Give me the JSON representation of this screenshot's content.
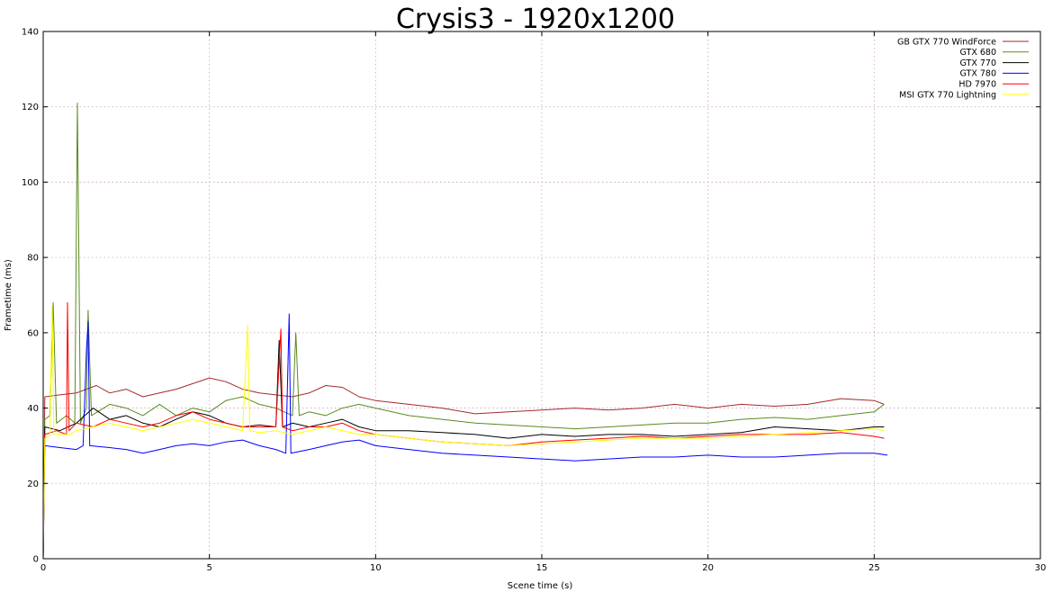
{
  "chart_data": {
    "type": "line",
    "title": "Crysis3 - 1920x1200",
    "xlabel": "Scene time (s)",
    "ylabel": "Frametime (ms)",
    "xlim": [
      0,
      30
    ],
    "ylim": [
      0,
      140
    ],
    "x_ticks": [
      "0",
      "5",
      "10",
      "15",
      "20",
      "25",
      "30"
    ],
    "y_ticks": [
      "0",
      "20",
      "40",
      "60",
      "80",
      "100",
      "120",
      "140"
    ],
    "grid": true,
    "legend_position": "top-right",
    "series": [
      {
        "name": "GB GTX 770 WindForce",
        "color": "#a52a2a",
        "points": [
          [
            0,
            0
          ],
          [
            0.05,
            43
          ],
          [
            0.5,
            43.5
          ],
          [
            1,
            44
          ],
          [
            1.3,
            45
          ],
          [
            1.6,
            46
          ],
          [
            2,
            44
          ],
          [
            2.5,
            45
          ],
          [
            3,
            43
          ],
          [
            3.5,
            44
          ],
          [
            4,
            45
          ],
          [
            4.5,
            46.5
          ],
          [
            5,
            48
          ],
          [
            5.5,
            47
          ],
          [
            6,
            45
          ],
          [
            6.5,
            44
          ],
          [
            7,
            43.5
          ],
          [
            7.5,
            43
          ],
          [
            8,
            44
          ],
          [
            8.5,
            46
          ],
          [
            9,
            45.5
          ],
          [
            9.5,
            43
          ],
          [
            10,
            42
          ],
          [
            11,
            41
          ],
          [
            12,
            40
          ],
          [
            13,
            38.5
          ],
          [
            14,
            39
          ],
          [
            15,
            39.5
          ],
          [
            16,
            40
          ],
          [
            17,
            39.5
          ],
          [
            18,
            40
          ],
          [
            19,
            41
          ],
          [
            20,
            40
          ],
          [
            21,
            41
          ],
          [
            22,
            40.5
          ],
          [
            23,
            41
          ],
          [
            24,
            42.5
          ],
          [
            25,
            42
          ],
          [
            25.3,
            41
          ]
        ]
      },
      {
        "name": "GTX 680",
        "color": "#5a8a1e",
        "points": [
          [
            0,
            0
          ],
          [
            0.05,
            37
          ],
          [
            0.2,
            38
          ],
          [
            0.3,
            68
          ],
          [
            0.4,
            36
          ],
          [
            0.7,
            38
          ],
          [
            0.95,
            36
          ],
          [
            1.03,
            121
          ],
          [
            1.12,
            36
          ],
          [
            1.3,
            40
          ],
          [
            1.35,
            66
          ],
          [
            1.45,
            38
          ],
          [
            2,
            41
          ],
          [
            2.5,
            40
          ],
          [
            3,
            38
          ],
          [
            3.5,
            41
          ],
          [
            4,
            38
          ],
          [
            4.5,
            40
          ],
          [
            5,
            39
          ],
          [
            5.5,
            42
          ],
          [
            6,
            43
          ],
          [
            6.5,
            41
          ],
          [
            7,
            40
          ],
          [
            7.5,
            38
          ],
          [
            7.6,
            60
          ],
          [
            7.7,
            38
          ],
          [
            8,
            39
          ],
          [
            8.5,
            38
          ],
          [
            9,
            40
          ],
          [
            9.5,
            41
          ],
          [
            10,
            40
          ],
          [
            11,
            38
          ],
          [
            12,
            37
          ],
          [
            13,
            36
          ],
          [
            14,
            35.5
          ],
          [
            15,
            35
          ],
          [
            16,
            34.5
          ],
          [
            17,
            35
          ],
          [
            18,
            35.5
          ],
          [
            19,
            36
          ],
          [
            20,
            36
          ],
          [
            21,
            37
          ],
          [
            22,
            37.5
          ],
          [
            23,
            37
          ],
          [
            24,
            38
          ],
          [
            25,
            39
          ],
          [
            25.3,
            41
          ]
        ]
      },
      {
        "name": "GTX 770",
        "color": "#000000",
        "points": [
          [
            0,
            0
          ],
          [
            0.05,
            35
          ],
          [
            0.5,
            34
          ],
          [
            1,
            36
          ],
          [
            1.5,
            40
          ],
          [
            2,
            37
          ],
          [
            2.5,
            38
          ],
          [
            3,
            36
          ],
          [
            3.5,
            35
          ],
          [
            4,
            37
          ],
          [
            4.5,
            39
          ],
          [
            5,
            38
          ],
          [
            5.5,
            36
          ],
          [
            6,
            35
          ],
          [
            6.5,
            35.5
          ],
          [
            7,
            35
          ],
          [
            7.1,
            58
          ],
          [
            7.2,
            35
          ],
          [
            7.5,
            36
          ],
          [
            8,
            35
          ],
          [
            8.5,
            36
          ],
          [
            9,
            37
          ],
          [
            9.5,
            35
          ],
          [
            10,
            34
          ],
          [
            11,
            34
          ],
          [
            12,
            33.5
          ],
          [
            13,
            33
          ],
          [
            14,
            32
          ],
          [
            15,
            33
          ],
          [
            16,
            32.5
          ],
          [
            17,
            33
          ],
          [
            18,
            33
          ],
          [
            19,
            32.5
          ],
          [
            20,
            33
          ],
          [
            21,
            33.5
          ],
          [
            22,
            35
          ],
          [
            23,
            34.5
          ],
          [
            24,
            34
          ],
          [
            25,
            35
          ],
          [
            25.3,
            35
          ]
        ]
      },
      {
        "name": "GTX 780",
        "color": "#0000ff",
        "points": [
          [
            0,
            0
          ],
          [
            0.05,
            30
          ],
          [
            0.5,
            29.5
          ],
          [
            1,
            29
          ],
          [
            1.2,
            30
          ],
          [
            1.3,
            55
          ],
          [
            1.35,
            63
          ],
          [
            1.4,
            30
          ],
          [
            2,
            29.5
          ],
          [
            2.5,
            29
          ],
          [
            3,
            28
          ],
          [
            3.5,
            29
          ],
          [
            4,
            30
          ],
          [
            4.5,
            30.5
          ],
          [
            5,
            30
          ],
          [
            5.5,
            31
          ],
          [
            6,
            31.5
          ],
          [
            6.5,
            30
          ],
          [
            7,
            29
          ],
          [
            7.3,
            28
          ],
          [
            7.4,
            65
          ],
          [
            7.45,
            28
          ],
          [
            8,
            29
          ],
          [
            8.5,
            30
          ],
          [
            9,
            31
          ],
          [
            9.5,
            31.5
          ],
          [
            10,
            30
          ],
          [
            11,
            29
          ],
          [
            12,
            28
          ],
          [
            13,
            27.5
          ],
          [
            14,
            27
          ],
          [
            15,
            26.5
          ],
          [
            16,
            26
          ],
          [
            17,
            26.5
          ],
          [
            18,
            27
          ],
          [
            19,
            27
          ],
          [
            20,
            27.5
          ],
          [
            21,
            27
          ],
          [
            22,
            27
          ],
          [
            23,
            27.5
          ],
          [
            24,
            28
          ],
          [
            25,
            28
          ],
          [
            25.4,
            27.5
          ]
        ]
      },
      {
        "name": "HD 7970",
        "color": "#ff0000",
        "points": [
          [
            0,
            0
          ],
          [
            0.05,
            33
          ],
          [
            0.4,
            34
          ],
          [
            0.7,
            33
          ],
          [
            0.73,
            68
          ],
          [
            0.78,
            34
          ],
          [
            1,
            36
          ],
          [
            1.5,
            35
          ],
          [
            2,
            37
          ],
          [
            2.5,
            36
          ],
          [
            3,
            35
          ],
          [
            3.5,
            36
          ],
          [
            4,
            38
          ],
          [
            4.5,
            39
          ],
          [
            5,
            37
          ],
          [
            5.5,
            36
          ],
          [
            6,
            35
          ],
          [
            6.5,
            35
          ],
          [
            7,
            35
          ],
          [
            7.15,
            61
          ],
          [
            7.2,
            35
          ],
          [
            7.5,
            34
          ],
          [
            8,
            35
          ],
          [
            8.5,
            35
          ],
          [
            9,
            36
          ],
          [
            9.5,
            34
          ],
          [
            10,
            33
          ],
          [
            11,
            32
          ],
          [
            12,
            31
          ],
          [
            13,
            30.5
          ],
          [
            14,
            30
          ],
          [
            15,
            31
          ],
          [
            16,
            31.5
          ],
          [
            17,
            32
          ],
          [
            18,
            32.5
          ],
          [
            19,
            32
          ],
          [
            20,
            32.5
          ],
          [
            21,
            33
          ],
          [
            22,
            33
          ],
          [
            23,
            33
          ],
          [
            24,
            33.5
          ],
          [
            25,
            32.5
          ],
          [
            25.3,
            32
          ]
        ]
      },
      {
        "name": "MSI GTX 770 Lightning",
        "color": "#ffff00",
        "points": [
          [
            0,
            0
          ],
          [
            0.05,
            32
          ],
          [
            0.2,
            33
          ],
          [
            0.27,
            67
          ],
          [
            0.32,
            33
          ],
          [
            0.8,
            33
          ],
          [
            1,
            34
          ],
          [
            1.5,
            35
          ],
          [
            2,
            36
          ],
          [
            2.5,
            35
          ],
          [
            3,
            34
          ],
          [
            3.5,
            35
          ],
          [
            4,
            36
          ],
          [
            4.5,
            37
          ],
          [
            5,
            36
          ],
          [
            5.5,
            35
          ],
          [
            6,
            34
          ],
          [
            6.15,
            62
          ],
          [
            6.22,
            34
          ],
          [
            6.5,
            33.5
          ],
          [
            7,
            34
          ],
          [
            7.5,
            33
          ],
          [
            8,
            34
          ],
          [
            8.5,
            35
          ],
          [
            9,
            34
          ],
          [
            9.5,
            33
          ],
          [
            10,
            33
          ],
          [
            11,
            32
          ],
          [
            12,
            31
          ],
          [
            13,
            30.5
          ],
          [
            14,
            30
          ],
          [
            15,
            30.5
          ],
          [
            16,
            31
          ],
          [
            17,
            31.5
          ],
          [
            18,
            32
          ],
          [
            19,
            32
          ],
          [
            20,
            32
          ],
          [
            21,
            32.5
          ],
          [
            22,
            33
          ],
          [
            23,
            33.5
          ],
          [
            24,
            34
          ],
          [
            25,
            34.5
          ],
          [
            25.3,
            34
          ]
        ]
      }
    ]
  }
}
